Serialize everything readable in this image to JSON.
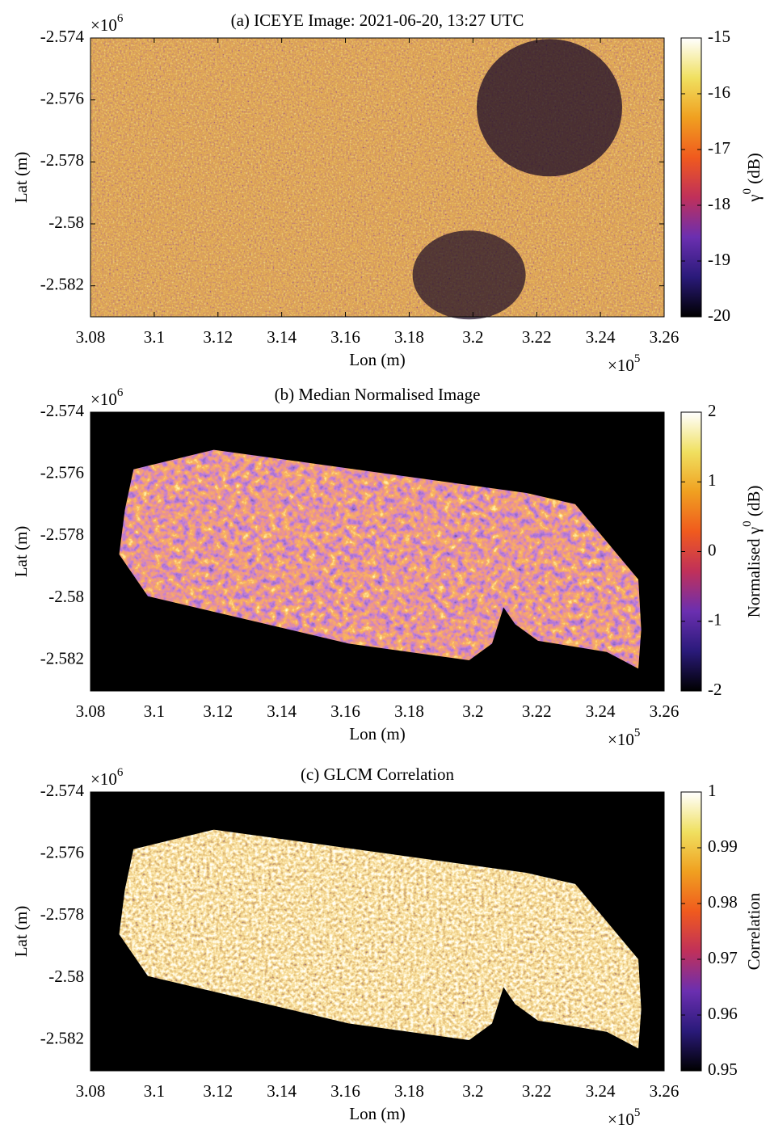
{
  "chart_data": [
    {
      "type": "image",
      "title": "(a) ICEYE Image: 2021-06-20, 13:27 UTC",
      "x_label": "Lon (m)",
      "y_label": "Lat (m)",
      "x_multiplier": {
        "base": "×10",
        "exponent": "5"
      },
      "y_multiplier": {
        "base": "×10",
        "exponent": "6"
      },
      "xlim": [
        3.08,
        3.26
      ],
      "xticks": [
        3.08,
        3.1,
        3.12,
        3.14,
        3.16,
        3.18,
        3.2,
        3.22,
        3.24,
        3.26
      ],
      "ylim": [
        -2.583,
        -2.574
      ],
      "yticks": [
        -2.582,
        -2.58,
        -2.578,
        -2.576,
        -2.574
      ],
      "colorbar": {
        "label_parts": [
          {
            "text": "γ"
          },
          {
            "text": "0",
            "sup": true
          },
          {
            "text": " (dB)"
          }
        ],
        "lim": [
          -20,
          -15
        ],
        "ticks": [
          -20,
          -19,
          -18,
          -17,
          -16,
          -15
        ],
        "colormap": [
          "#000000",
          "#2a1a7a",
          "#6b2fb0",
          "#c0305a",
          "#f05a1e",
          "#f0a020",
          "#f0e060",
          "#ffffff"
        ]
      }
    },
    {
      "type": "image",
      "title": "(b) Median Normalised Image",
      "x_label": "Lon (m)",
      "y_label": "Lat (m)",
      "x_multiplier": {
        "base": "×10",
        "exponent": "5"
      },
      "y_multiplier": {
        "base": "×10",
        "exponent": "6"
      },
      "xlim": [
        3.08,
        3.26
      ],
      "xticks": [
        3.08,
        3.1,
        3.12,
        3.14,
        3.16,
        3.18,
        3.2,
        3.22,
        3.24,
        3.26
      ],
      "ylim": [
        -2.583,
        -2.574
      ],
      "yticks": [
        -2.582,
        -2.58,
        -2.578,
        -2.576,
        -2.574
      ],
      "colorbar": {
        "label_parts": [
          {
            "text": "Normalised γ"
          },
          {
            "text": "0",
            "sup": true
          },
          {
            "text": " (dB)"
          }
        ],
        "lim": [
          -2,
          2
        ],
        "ticks": [
          -2,
          -1,
          0,
          1,
          2
        ],
        "colormap": [
          "#000000",
          "#2a1a7a",
          "#6b2fb0",
          "#c0305a",
          "#f05a1e",
          "#f0a020",
          "#f0e060",
          "#ffffff"
        ]
      }
    },
    {
      "type": "image",
      "title": "(c) GLCM Correlation",
      "x_label": "Lon (m)",
      "y_label": "Lat (m)",
      "x_multiplier": {
        "base": "×10",
        "exponent": "5"
      },
      "y_multiplier": {
        "base": "×10",
        "exponent": "6"
      },
      "xlim": [
        3.08,
        3.26
      ],
      "xticks": [
        3.08,
        3.1,
        3.12,
        3.14,
        3.16,
        3.18,
        3.2,
        3.22,
        3.24,
        3.26
      ],
      "ylim": [
        -2.583,
        -2.574
      ],
      "yticks": [
        -2.582,
        -2.58,
        -2.578,
        -2.576,
        -2.574
      ],
      "colorbar": {
        "label_parts": [
          {
            "text": "Correlation"
          }
        ],
        "lim": [
          0.95,
          1
        ],
        "ticks": [
          0.95,
          0.96,
          0.97,
          0.98,
          0.99,
          1
        ],
        "colormap": [
          "#000000",
          "#2a1a7a",
          "#6b2fb0",
          "#c0305a",
          "#f05a1e",
          "#f0a020",
          "#f0e060",
          "#ffffff"
        ]
      }
    }
  ]
}
